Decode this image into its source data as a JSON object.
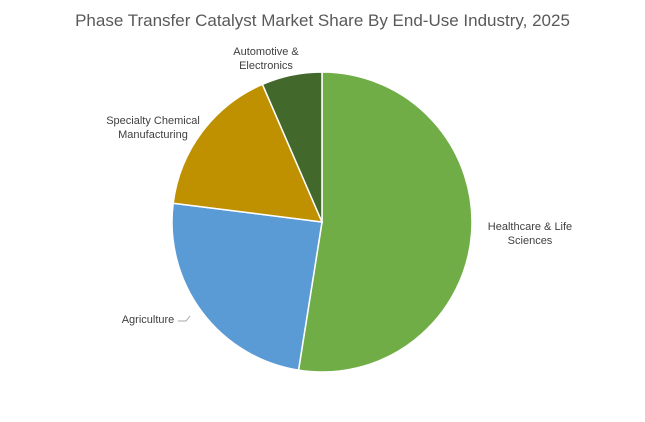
{
  "chart_data": {
    "type": "pie",
    "title": "Phase Transfer Catalyst Market Share By End-Use Industry, 2025",
    "slices": [
      {
        "label": "Healthcare & Life Sciences",
        "value": 52.5,
        "color": "#70ad47"
      },
      {
        "label": "Agriculture",
        "value": 24.5,
        "color": "#5b9bd5"
      },
      {
        "label": "Specialty Chemical Manufacturing",
        "value": 16.5,
        "color": "#bf9000"
      },
      {
        "label": "Automotive & Electronics",
        "value": 6.5,
        "color": "#43682b"
      }
    ],
    "labels_display": [
      [
        "Healthcare & Life",
        "Sciences"
      ],
      [
        "Agriculture"
      ],
      [
        "Specialty Chemical",
        "Manufacturing"
      ],
      [
        "Automotive &",
        "Electronics"
      ]
    ],
    "start": "12 o'clock",
    "direction": "clockwise"
  }
}
